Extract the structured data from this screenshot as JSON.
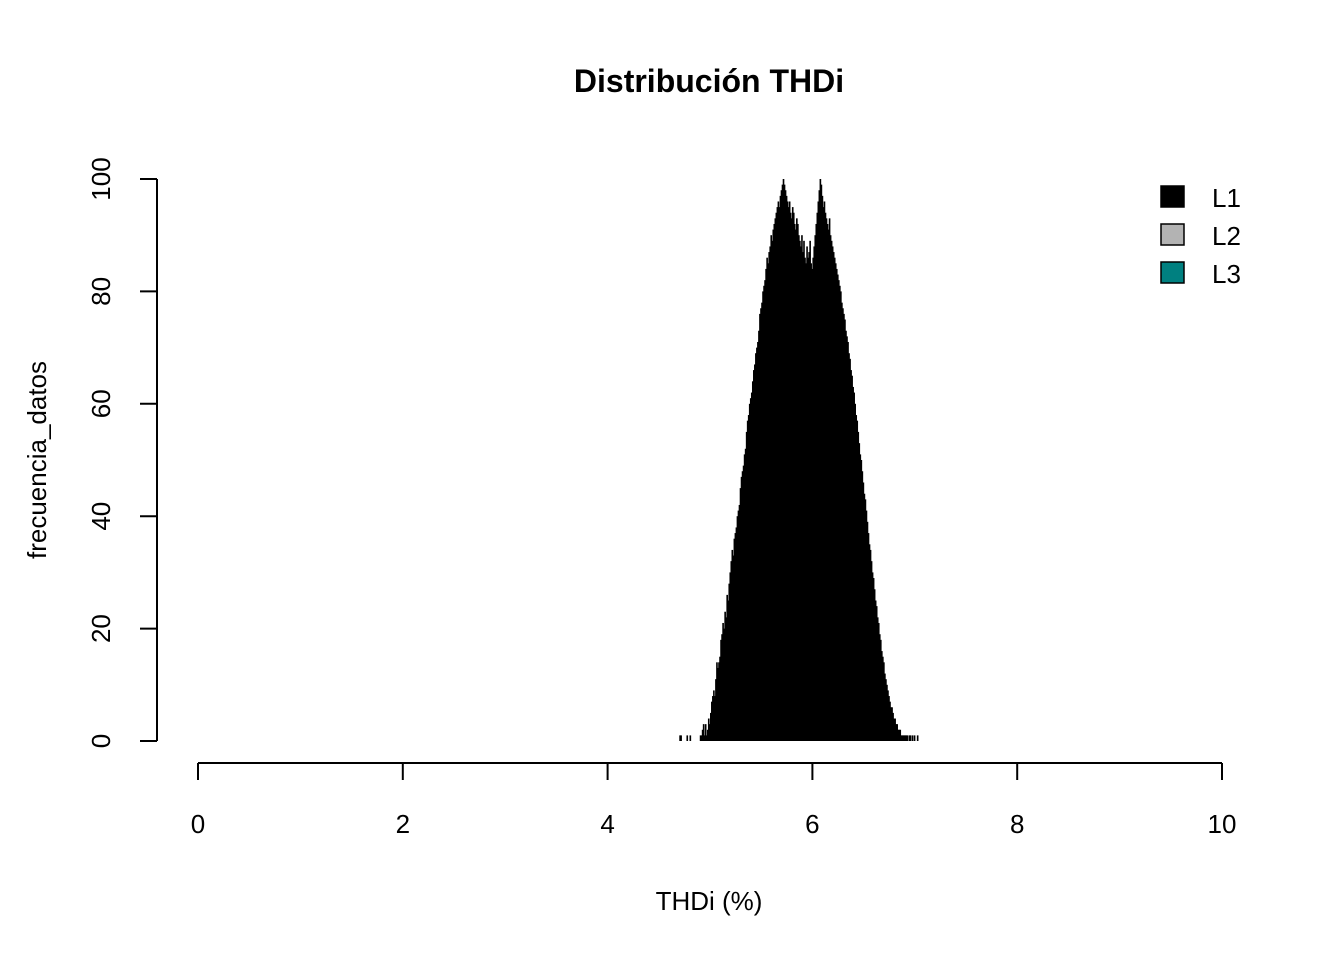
{
  "chart_data": {
    "type": "bar",
    "title": "Distribución THDi",
    "xlabel": "THDi (%)",
    "ylabel": "frecuencia_datos",
    "xlim": [
      0,
      10
    ],
    "ylim": [
      0,
      100
    ],
    "x_ticks": [
      "0",
      "2",
      "4",
      "6",
      "8",
      "10"
    ],
    "y_ticks": [
      "0",
      "20",
      "40",
      "60",
      "80",
      "100"
    ],
    "legend_position": "top-right",
    "legend": [
      {
        "label": "L1",
        "color": "#000000"
      },
      {
        "label": "L2",
        "color": "#b3b3b3"
      },
      {
        "label": "L3",
        "color": "#008080"
      }
    ],
    "series": [
      {
        "name": "L1",
        "color": "#000000",
        "bin_width": 0.01,
        "x_start": 4.7,
        "values": [
          1,
          1,
          0,
          0,
          0,
          0,
          0,
          1,
          0,
          0,
          1,
          0,
          0,
          0,
          0,
          0,
          0,
          0,
          0,
          0,
          1,
          1,
          2,
          3,
          1,
          3,
          1,
          2,
          4,
          3,
          5,
          7,
          8,
          9,
          8,
          11,
          14,
          13,
          14,
          15,
          18,
          19,
          21,
          20,
          23,
          22,
          26,
          25,
          28,
          30,
          32,
          34,
          33,
          36,
          37,
          38,
          40,
          41,
          42,
          45,
          47,
          48,
          49,
          51,
          52,
          55,
          57,
          58,
          60,
          61,
          62,
          64,
          66,
          67,
          69,
          70,
          71,
          73,
          76,
          77,
          78,
          80,
          81,
          82,
          84,
          86,
          85,
          87,
          88,
          90,
          89,
          91,
          92,
          93,
          94,
          95,
          96,
          95,
          97,
          98,
          99,
          100,
          99,
          98,
          97,
          96,
          95,
          96,
          94,
          93,
          95,
          94,
          92,
          91,
          93,
          92,
          90,
          89,
          88,
          90,
          87,
          89,
          86,
          85,
          88,
          86,
          87,
          89,
          85,
          84,
          86,
          88,
          90,
          92,
          94,
          96,
          98,
          100,
          99,
          97,
          95,
          96,
          94,
          93,
          92,
          91,
          93,
          90,
          89,
          88,
          87,
          86,
          85,
          84,
          83,
          82,
          81,
          80,
          78,
          77,
          76,
          75,
          73,
          72,
          71,
          69,
          68,
          66,
          65,
          63,
          62,
          60,
          58,
          57,
          55,
          53,
          51,
          50,
          48,
          46,
          44,
          43,
          41,
          39,
          37,
          35,
          34,
          32,
          30,
          29,
          27,
          25,
          24,
          22,
          21,
          19,
          18,
          16,
          15,
          14,
          12,
          11,
          10,
          9,
          8,
          7,
          6,
          6,
          5,
          4,
          4,
          3,
          3,
          2,
          2,
          2,
          1,
          1,
          1,
          1,
          1,
          1,
          1,
          0,
          1,
          1,
          0,
          1,
          0,
          1,
          0,
          0,
          1
        ]
      }
    ]
  }
}
